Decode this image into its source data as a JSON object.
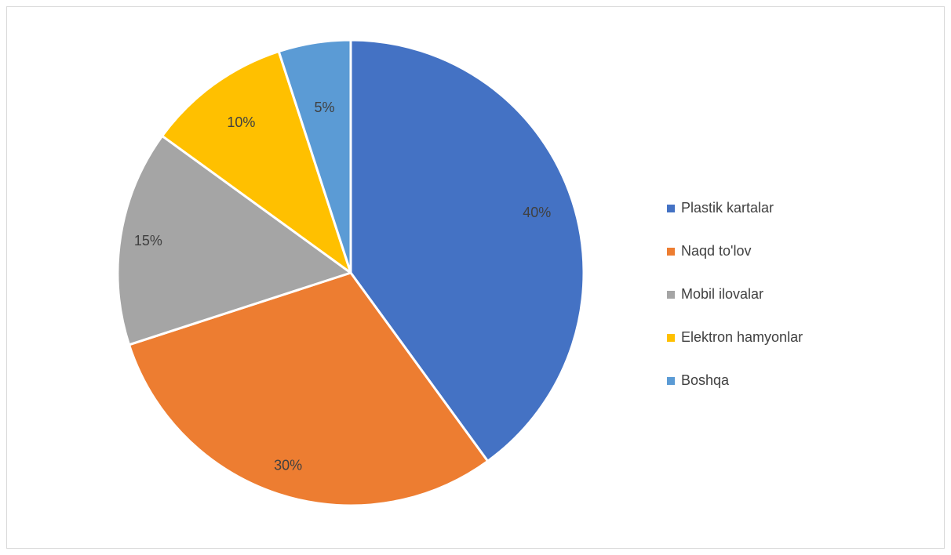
{
  "chart_data": {
    "type": "pie",
    "title": "",
    "categories": [
      "Plastik kartalar",
      "Naqd to'lov",
      "Mobil ilovalar",
      "Elektron hamyonlar",
      "Boshqa"
    ],
    "values": [
      40,
      30,
      15,
      10,
      5
    ],
    "labels": [
      "40%",
      "30%",
      "15%",
      "10%",
      "5%"
    ],
    "colors": [
      "#4472C4",
      "#ED7D31",
      "#A5A5A5",
      "#FFC000",
      "#5B9BD5"
    ],
    "legend_position": "right",
    "start_angle": "top, clockwise"
  }
}
